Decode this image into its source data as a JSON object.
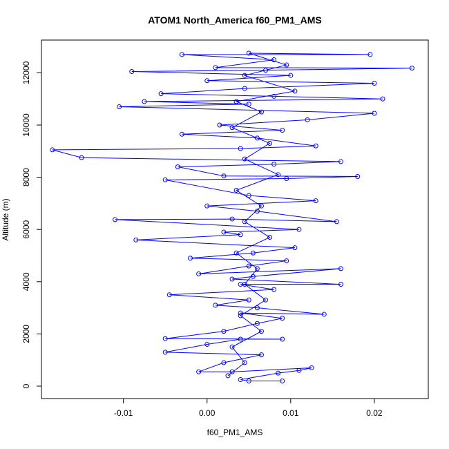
{
  "chart_data": {
    "type": "line",
    "title": "ATOM1 North_America f60_PM1_AMS",
    "x_label": "f60_PM1_AMS",
    "y_label": "Altitude (m)",
    "color": "#0000ff",
    "xlim": [
      -0.0198,
      0.02645
    ],
    "ylim": [
      -476,
      13254
    ],
    "xticks": [
      -0.01,
      {
        "value": 0,
        "label": "0.00"
      },
      0.01,
      0.02
    ],
    "yticks": [
      0,
      2000,
      4000,
      6000,
      8000,
      10000,
      12000
    ],
    "x": [
      0.009,
      0.005,
      0.004,
      0.0085,
      0.011,
      0.0125,
      0.003,
      -0.001,
      0.002,
      0.0065,
      -0.005,
      0.0,
      0.004,
      0.009,
      -0.005,
      0.002,
      0.006,
      0.009,
      0.004,
      0.014,
      0.006,
      0.001,
      0.005,
      -0.0045,
      0.008,
      0.004,
      0.016,
      0.003,
      0.0055,
      0.016,
      -0.001,
      0.005,
      0.0095,
      -0.002,
      0.0055,
      0.0105,
      -0.0085,
      0.004,
      0.002,
      0.011,
      -0.011,
      0.003,
      0.0155,
      0.006,
      0.0,
      0.013,
      0.005,
      -0.005,
      0.0095,
      0.018,
      0.002,
      -0.0035,
      0.008,
      0.016,
      -0.015,
      -0.0185,
      0.004,
      0.013,
      0.006,
      -0.003,
      0.009,
      0.0015,
      0.012,
      0.02,
      -0.0105,
      0.005,
      -0.0075,
      0.021,
      0.008,
      -0.0055,
      0.0045,
      0.02,
      0.0,
      0.01,
      -0.009,
      0.007,
      0.0245,
      0.001,
      0.008,
      -0.003,
      0.0195,
      0.005,
      0.0095,
      0.0045,
      0.0105,
      0.0035,
      0.0065,
      0.003,
      0.0075,
      0.0045,
      0.0085,
      0.0035,
      0.0065,
      0.0045,
      0.0075,
      0.0035,
      0.006,
      0.0045,
      0.007,
      0.004,
      0.0065,
      0.003,
      0.0045,
      0.0025
    ],
    "values": [
      200,
      200,
      250,
      500,
      600,
      700,
      550,
      550,
      900,
      1200,
      1300,
      1600,
      1800,
      1800,
      1820,
      2100,
      2400,
      2600,
      2800,
      2750,
      3000,
      3100,
      3300,
      3500,
      3700,
      3900,
      3900,
      4100,
      4200,
      4500,
      4300,
      4600,
      4800,
      4900,
      5100,
      5300,
      5600,
      5800,
      5900,
      6000,
      6380,
      6400,
      6300,
      6700,
      6900,
      7100,
      7300,
      7900,
      7950,
      8030,
      8050,
      8400,
      8500,
      8600,
      8750,
      9050,
      9100,
      9200,
      9500,
      9650,
      9800,
      10000,
      10200,
      10450,
      10700,
      10800,
      10900,
      11000,
      11100,
      11200,
      11400,
      11600,
      11700,
      11900,
      12050,
      12100,
      12180,
      12200,
      12500,
      12700,
      12700,
      12750,
      12300,
      11900,
      11300,
      10900,
      10500,
      9900,
      9300,
      8700,
      8100,
      7500,
      6900,
      6300,
      5700,
      5100,
      4500,
      3900,
      3300,
      2700,
      2100,
      1500,
      900,
      400
    ]
  }
}
